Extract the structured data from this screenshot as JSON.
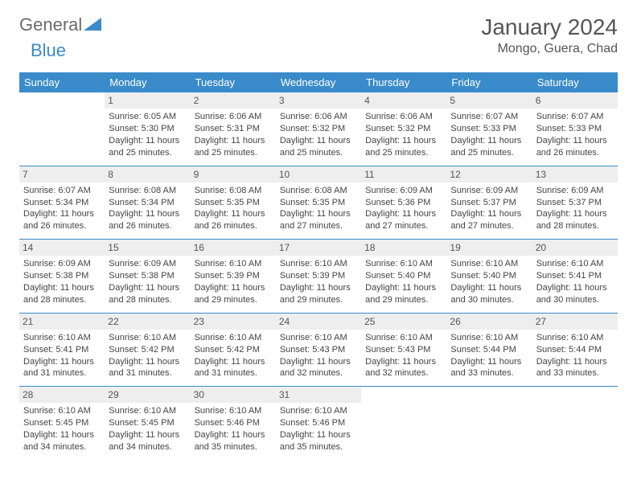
{
  "logo": {
    "text1": "General",
    "text2": "Blue"
  },
  "title": "January 2024",
  "location": "Mongo, Guera, Chad",
  "colors": {
    "header_bg": "#3a8bc9",
    "header_text": "#ffffff",
    "daynum_bg": "#eeeeee",
    "text": "#444444",
    "border": "#3a8bc9"
  },
  "weekdays": [
    "Sunday",
    "Monday",
    "Tuesday",
    "Wednesday",
    "Thursday",
    "Friday",
    "Saturday"
  ],
  "weeks": [
    [
      null,
      {
        "n": "1",
        "sr": "Sunrise: 6:05 AM",
        "ss": "Sunset: 5:30 PM",
        "dl": "Daylight: 11 hours and 25 minutes."
      },
      {
        "n": "2",
        "sr": "Sunrise: 6:06 AM",
        "ss": "Sunset: 5:31 PM",
        "dl": "Daylight: 11 hours and 25 minutes."
      },
      {
        "n": "3",
        "sr": "Sunrise: 6:06 AM",
        "ss": "Sunset: 5:32 PM",
        "dl": "Daylight: 11 hours and 25 minutes."
      },
      {
        "n": "4",
        "sr": "Sunrise: 6:06 AM",
        "ss": "Sunset: 5:32 PM",
        "dl": "Daylight: 11 hours and 25 minutes."
      },
      {
        "n": "5",
        "sr": "Sunrise: 6:07 AM",
        "ss": "Sunset: 5:33 PM",
        "dl": "Daylight: 11 hours and 25 minutes."
      },
      {
        "n": "6",
        "sr": "Sunrise: 6:07 AM",
        "ss": "Sunset: 5:33 PM",
        "dl": "Daylight: 11 hours and 26 minutes."
      }
    ],
    [
      {
        "n": "7",
        "sr": "Sunrise: 6:07 AM",
        "ss": "Sunset: 5:34 PM",
        "dl": "Daylight: 11 hours and 26 minutes."
      },
      {
        "n": "8",
        "sr": "Sunrise: 6:08 AM",
        "ss": "Sunset: 5:34 PM",
        "dl": "Daylight: 11 hours and 26 minutes."
      },
      {
        "n": "9",
        "sr": "Sunrise: 6:08 AM",
        "ss": "Sunset: 5:35 PM",
        "dl": "Daylight: 11 hours and 26 minutes."
      },
      {
        "n": "10",
        "sr": "Sunrise: 6:08 AM",
        "ss": "Sunset: 5:35 PM",
        "dl": "Daylight: 11 hours and 27 minutes."
      },
      {
        "n": "11",
        "sr": "Sunrise: 6:09 AM",
        "ss": "Sunset: 5:36 PM",
        "dl": "Daylight: 11 hours and 27 minutes."
      },
      {
        "n": "12",
        "sr": "Sunrise: 6:09 AM",
        "ss": "Sunset: 5:37 PM",
        "dl": "Daylight: 11 hours and 27 minutes."
      },
      {
        "n": "13",
        "sr": "Sunrise: 6:09 AM",
        "ss": "Sunset: 5:37 PM",
        "dl": "Daylight: 11 hours and 28 minutes."
      }
    ],
    [
      {
        "n": "14",
        "sr": "Sunrise: 6:09 AM",
        "ss": "Sunset: 5:38 PM",
        "dl": "Daylight: 11 hours and 28 minutes."
      },
      {
        "n": "15",
        "sr": "Sunrise: 6:09 AM",
        "ss": "Sunset: 5:38 PM",
        "dl": "Daylight: 11 hours and 28 minutes."
      },
      {
        "n": "16",
        "sr": "Sunrise: 6:10 AM",
        "ss": "Sunset: 5:39 PM",
        "dl": "Daylight: 11 hours and 29 minutes."
      },
      {
        "n": "17",
        "sr": "Sunrise: 6:10 AM",
        "ss": "Sunset: 5:39 PM",
        "dl": "Daylight: 11 hours and 29 minutes."
      },
      {
        "n": "18",
        "sr": "Sunrise: 6:10 AM",
        "ss": "Sunset: 5:40 PM",
        "dl": "Daylight: 11 hours and 29 minutes."
      },
      {
        "n": "19",
        "sr": "Sunrise: 6:10 AM",
        "ss": "Sunset: 5:40 PM",
        "dl": "Daylight: 11 hours and 30 minutes."
      },
      {
        "n": "20",
        "sr": "Sunrise: 6:10 AM",
        "ss": "Sunset: 5:41 PM",
        "dl": "Daylight: 11 hours and 30 minutes."
      }
    ],
    [
      {
        "n": "21",
        "sr": "Sunrise: 6:10 AM",
        "ss": "Sunset: 5:41 PM",
        "dl": "Daylight: 11 hours and 31 minutes."
      },
      {
        "n": "22",
        "sr": "Sunrise: 6:10 AM",
        "ss": "Sunset: 5:42 PM",
        "dl": "Daylight: 11 hours and 31 minutes."
      },
      {
        "n": "23",
        "sr": "Sunrise: 6:10 AM",
        "ss": "Sunset: 5:42 PM",
        "dl": "Daylight: 11 hours and 31 minutes."
      },
      {
        "n": "24",
        "sr": "Sunrise: 6:10 AM",
        "ss": "Sunset: 5:43 PM",
        "dl": "Daylight: 11 hours and 32 minutes."
      },
      {
        "n": "25",
        "sr": "Sunrise: 6:10 AM",
        "ss": "Sunset: 5:43 PM",
        "dl": "Daylight: 11 hours and 32 minutes."
      },
      {
        "n": "26",
        "sr": "Sunrise: 6:10 AM",
        "ss": "Sunset: 5:44 PM",
        "dl": "Daylight: 11 hours and 33 minutes."
      },
      {
        "n": "27",
        "sr": "Sunrise: 6:10 AM",
        "ss": "Sunset: 5:44 PM",
        "dl": "Daylight: 11 hours and 33 minutes."
      }
    ],
    [
      {
        "n": "28",
        "sr": "Sunrise: 6:10 AM",
        "ss": "Sunset: 5:45 PM",
        "dl": "Daylight: 11 hours and 34 minutes."
      },
      {
        "n": "29",
        "sr": "Sunrise: 6:10 AM",
        "ss": "Sunset: 5:45 PM",
        "dl": "Daylight: 11 hours and 34 minutes."
      },
      {
        "n": "30",
        "sr": "Sunrise: 6:10 AM",
        "ss": "Sunset: 5:46 PM",
        "dl": "Daylight: 11 hours and 35 minutes."
      },
      {
        "n": "31",
        "sr": "Sunrise: 6:10 AM",
        "ss": "Sunset: 5:46 PM",
        "dl": "Daylight: 11 hours and 35 minutes."
      },
      null,
      null,
      null
    ]
  ]
}
